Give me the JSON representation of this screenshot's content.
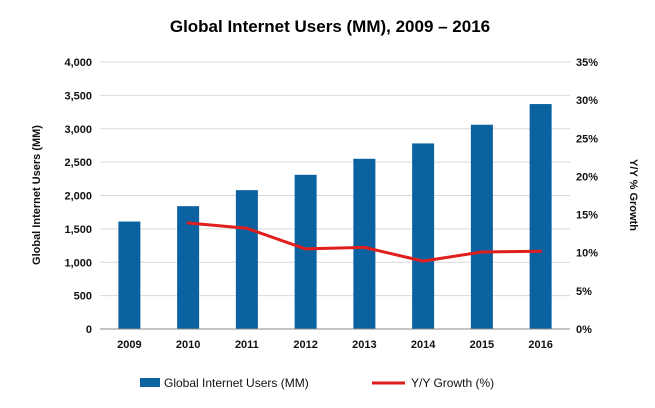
{
  "chart_data": {
    "type": "bar",
    "title": "Global Internet Users (MM), 2009 – 2016",
    "categories": [
      "2009",
      "2010",
      "2011",
      "2012",
      "2013",
      "2014",
      "2015",
      "2016"
    ],
    "series": [
      {
        "name": "Global Internet Users (MM)",
        "type": "bar",
        "axis": "left",
        "color": "#0b62a0",
        "values": [
          1610,
          1840,
          2080,
          2310,
          2550,
          2780,
          3060,
          3370
        ]
      },
      {
        "name": "Y/Y Growth (%)",
        "type": "line",
        "axis": "right",
        "color": "#e01e1e",
        "values": [
          null,
          13.9,
          13.2,
          10.5,
          10.7,
          8.9,
          10.1,
          10.2
        ]
      }
    ],
    "ylabel": "Global Internet Users (MM)",
    "ylim": [
      0,
      4000
    ],
    "yticks": [
      "0",
      "500",
      "1,000",
      "1,500",
      "2,000",
      "2,500",
      "3,000",
      "3,500",
      "4,000"
    ],
    "y2label": "Y/Y % Growth",
    "y2lim": [
      0,
      35
    ],
    "y2ticks": [
      "0%",
      "5%",
      "10%",
      "15%",
      "20%",
      "25%",
      "30%",
      "35%"
    ],
    "grid": true,
    "gridColor": "#d9d9d9",
    "legend": "bottom"
  }
}
